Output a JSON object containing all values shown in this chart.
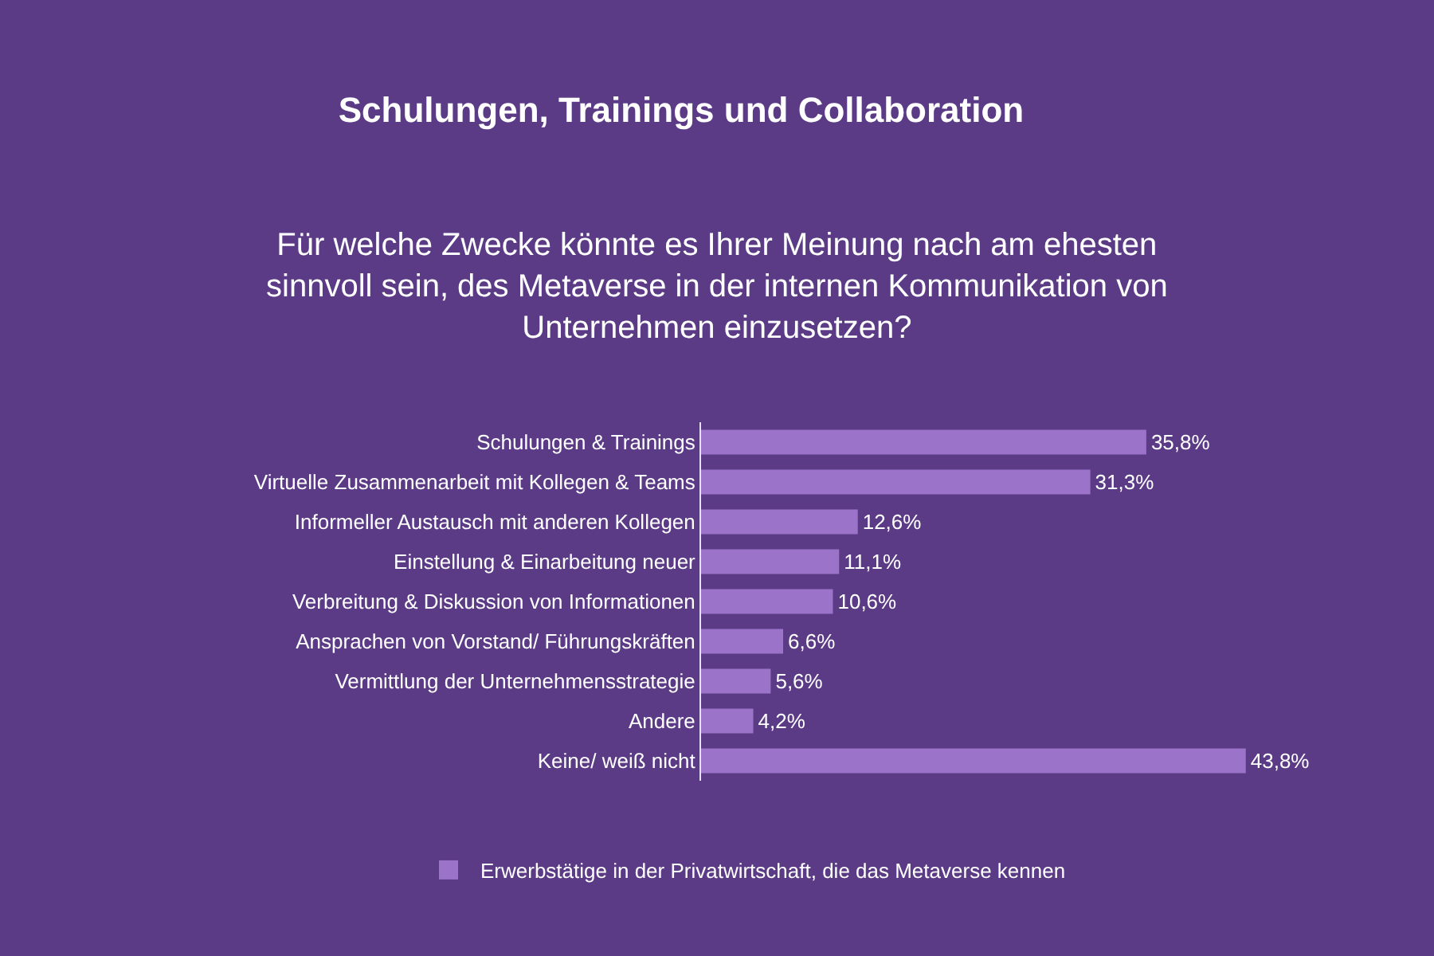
{
  "chart_data": {
    "type": "bar",
    "orientation": "horizontal",
    "title": "Schulungen, Trainings und Collaboration",
    "subtitle": "Für welche Zwecke könnte es Ihrer Meinung nach am ehesten sinnvoll sein, des Metaverse in der internen Kommunikation von Unternehmen einzusetzen?",
    "categories": [
      "Schulungen & Trainings",
      "Virtuelle Zusammenarbeit mit Kollegen & Teams",
      "Informeller Austausch mit anderen Kollegen",
      "Einstellung & Einarbeitung neuer",
      "Verbreitung & Diskussion von Informationen",
      "Ansprachen von Vorstand/ Führungskräften",
      "Vermittlung der Unternehmensstrategie",
      "Andere",
      "Keine/ weiß nicht"
    ],
    "series": [
      {
        "name": "Erwerbstätige in der Privatwirtschaft, die das Metaverse kennen",
        "color": "#9b74c9",
        "values": [
          35.8,
          31.3,
          12.6,
          11.1,
          10.6,
          6.6,
          5.6,
          4.2,
          43.8
        ],
        "value_labels": [
          "35,8%",
          "31,3%",
          "12,6%",
          "11,1%",
          "10,6%",
          "6,6%",
          "5,6%",
          "4,2%",
          "43,8%"
        ]
      }
    ],
    "legend": "bottom",
    "grid": false
  }
}
